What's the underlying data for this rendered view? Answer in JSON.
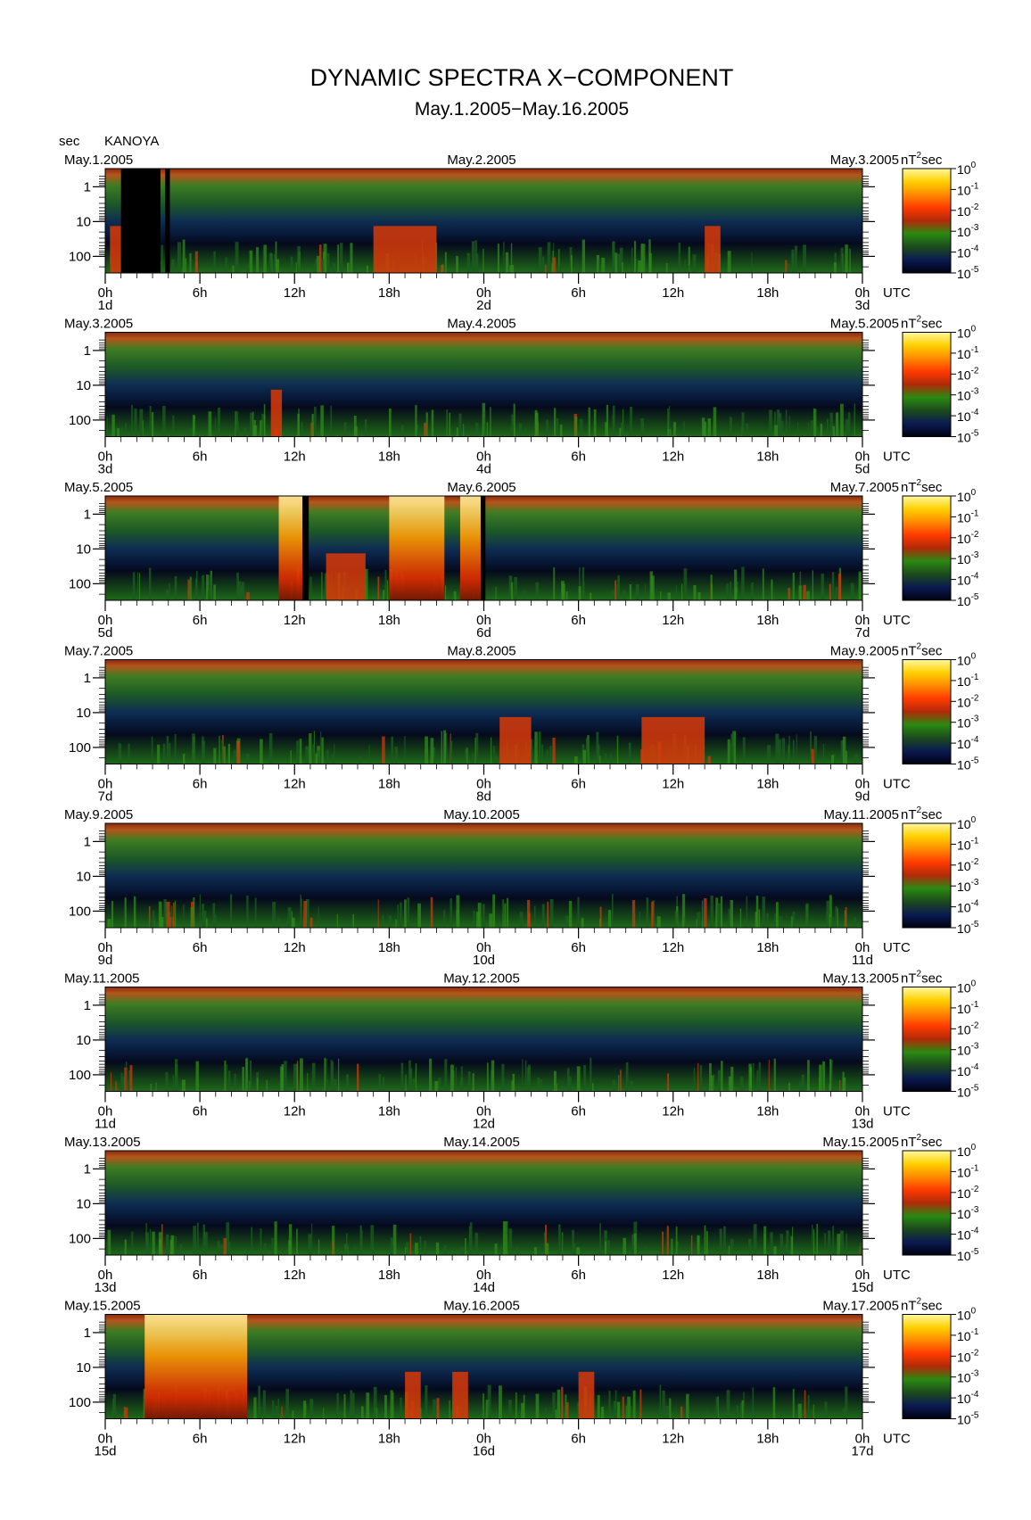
{
  "title": "DYNAMIC SPECTRA X−COMPONENT",
  "subtitle": "May.1.2005−May.16.2005",
  "y_unit": "sec",
  "station": "KANOYA",
  "x_unit": "UTC",
  "colorbar_unit_label": "nT",
  "colorbar_unit_exp": "2",
  "colorbar_unit_suffix": "sec",
  "chart_data": {
    "type": "heatmap",
    "description_units": {
      "x": "hours UTC across 2 days per panel",
      "y": "period (sec), log scale",
      "z": "power nT^2 sec, log scale"
    },
    "y_ticks": [
      "1",
      "10",
      "100"
    ],
    "y_scale": "log",
    "y_range": [
      0.3,
      300
    ],
    "x_tick_labels": [
      "0h",
      "6h",
      "12h",
      "18h",
      "0h",
      "6h",
      "12h",
      "18h",
      "0h"
    ],
    "colorbar": {
      "scale": "log",
      "range": [
        1e-05,
        1
      ],
      "tick_bases": [
        "10",
        "10",
        "10",
        "10",
        "10",
        "10"
      ],
      "tick_exps": [
        "0",
        "-1",
        "-2",
        "-3",
        "-4",
        "-5"
      ],
      "colors": [
        "#000010",
        "#0a1a52",
        "#1c4a1c",
        "#2a8a12",
        "#b02a08",
        "#ff3a00",
        "#ff8a00",
        "#ffd000",
        "#fff8a0"
      ]
    },
    "panels": [
      {
        "date_left": "May.1.2005",
        "date_mid": "May.2.2005",
        "date_right": "May.3.2005",
        "day_labels": [
          "1d",
          "2d",
          "3d"
        ]
      },
      {
        "date_left": "May.3.2005",
        "date_mid": "May.4.2005",
        "date_right": "May.5.2005",
        "day_labels": [
          "3d",
          "4d",
          "5d"
        ]
      },
      {
        "date_left": "May.5.2005",
        "date_mid": "May.6.2005",
        "date_right": "May.7.2005",
        "day_labels": [
          "5d",
          "6d",
          "7d"
        ]
      },
      {
        "date_left": "May.7.2005",
        "date_mid": "May.8.2005",
        "date_right": "May.9.2005",
        "day_labels": [
          "7d",
          "8d",
          "9d"
        ]
      },
      {
        "date_left": "May.9.2005",
        "date_mid": "May.10.2005",
        "date_right": "May.11.2005",
        "day_labels": [
          "9d",
          "10d",
          "11d"
        ]
      },
      {
        "date_left": "May.11.2005",
        "date_mid": "May.12.2005",
        "date_right": "May.13.2005",
        "day_labels": [
          "11d",
          "12d",
          "13d"
        ]
      },
      {
        "date_left": "May.13.2005",
        "date_mid": "May.14.2005",
        "date_right": "May.15.2005",
        "day_labels": [
          "13d",
          "14d",
          "15d"
        ]
      },
      {
        "date_left": "May.15.2005",
        "date_mid": "May.16.2005",
        "date_right": "May.17.2005",
        "day_labels": [
          "15d",
          "16d",
          "17d"
        ]
      }
    ],
    "highlights": [
      {
        "panel": 0,
        "start_h": 0.3,
        "end_h": 1.0,
        "intensity": "red"
      },
      {
        "panel": 0,
        "start_h": 1.0,
        "end_h": 3.5,
        "intensity": "data-gap"
      },
      {
        "panel": 0,
        "start_h": 3.8,
        "end_h": 4.1,
        "intensity": "data-gap"
      },
      {
        "panel": 0,
        "start_h": 17.0,
        "end_h": 21.0,
        "intensity": "red"
      },
      {
        "panel": 0,
        "start_h": 38.0,
        "end_h": 39.0,
        "intensity": "red"
      },
      {
        "panel": 1,
        "start_h": 10.5,
        "end_h": 11.2,
        "intensity": "red"
      },
      {
        "panel": 2,
        "start_h": 11.0,
        "end_h": 12.5,
        "intensity": "yellow"
      },
      {
        "panel": 2,
        "start_h": 12.5,
        "end_h": 12.9,
        "intensity": "data-gap"
      },
      {
        "panel": 2,
        "start_h": 14.0,
        "end_h": 16.5,
        "intensity": "red"
      },
      {
        "panel": 2,
        "start_h": 18.0,
        "end_h": 21.5,
        "intensity": "yellow"
      },
      {
        "panel": 2,
        "start_h": 22.5,
        "end_h": 23.8,
        "intensity": "yellow"
      },
      {
        "panel": 2,
        "start_h": 23.8,
        "end_h": 24.1,
        "intensity": "data-gap"
      },
      {
        "panel": 3,
        "start_h": 25.0,
        "end_h": 27.0,
        "intensity": "red"
      },
      {
        "panel": 3,
        "start_h": 34.0,
        "end_h": 38.0,
        "intensity": "red"
      },
      {
        "panel": 7,
        "start_h": 2.5,
        "end_h": 9.0,
        "intensity": "yellow"
      },
      {
        "panel": 7,
        "start_h": 19.0,
        "end_h": 20.0,
        "intensity": "red"
      },
      {
        "panel": 7,
        "start_h": 22.0,
        "end_h": 23.0,
        "intensity": "red"
      },
      {
        "panel": 7,
        "start_h": 30.0,
        "end_h": 31.0,
        "intensity": "red"
      }
    ]
  }
}
